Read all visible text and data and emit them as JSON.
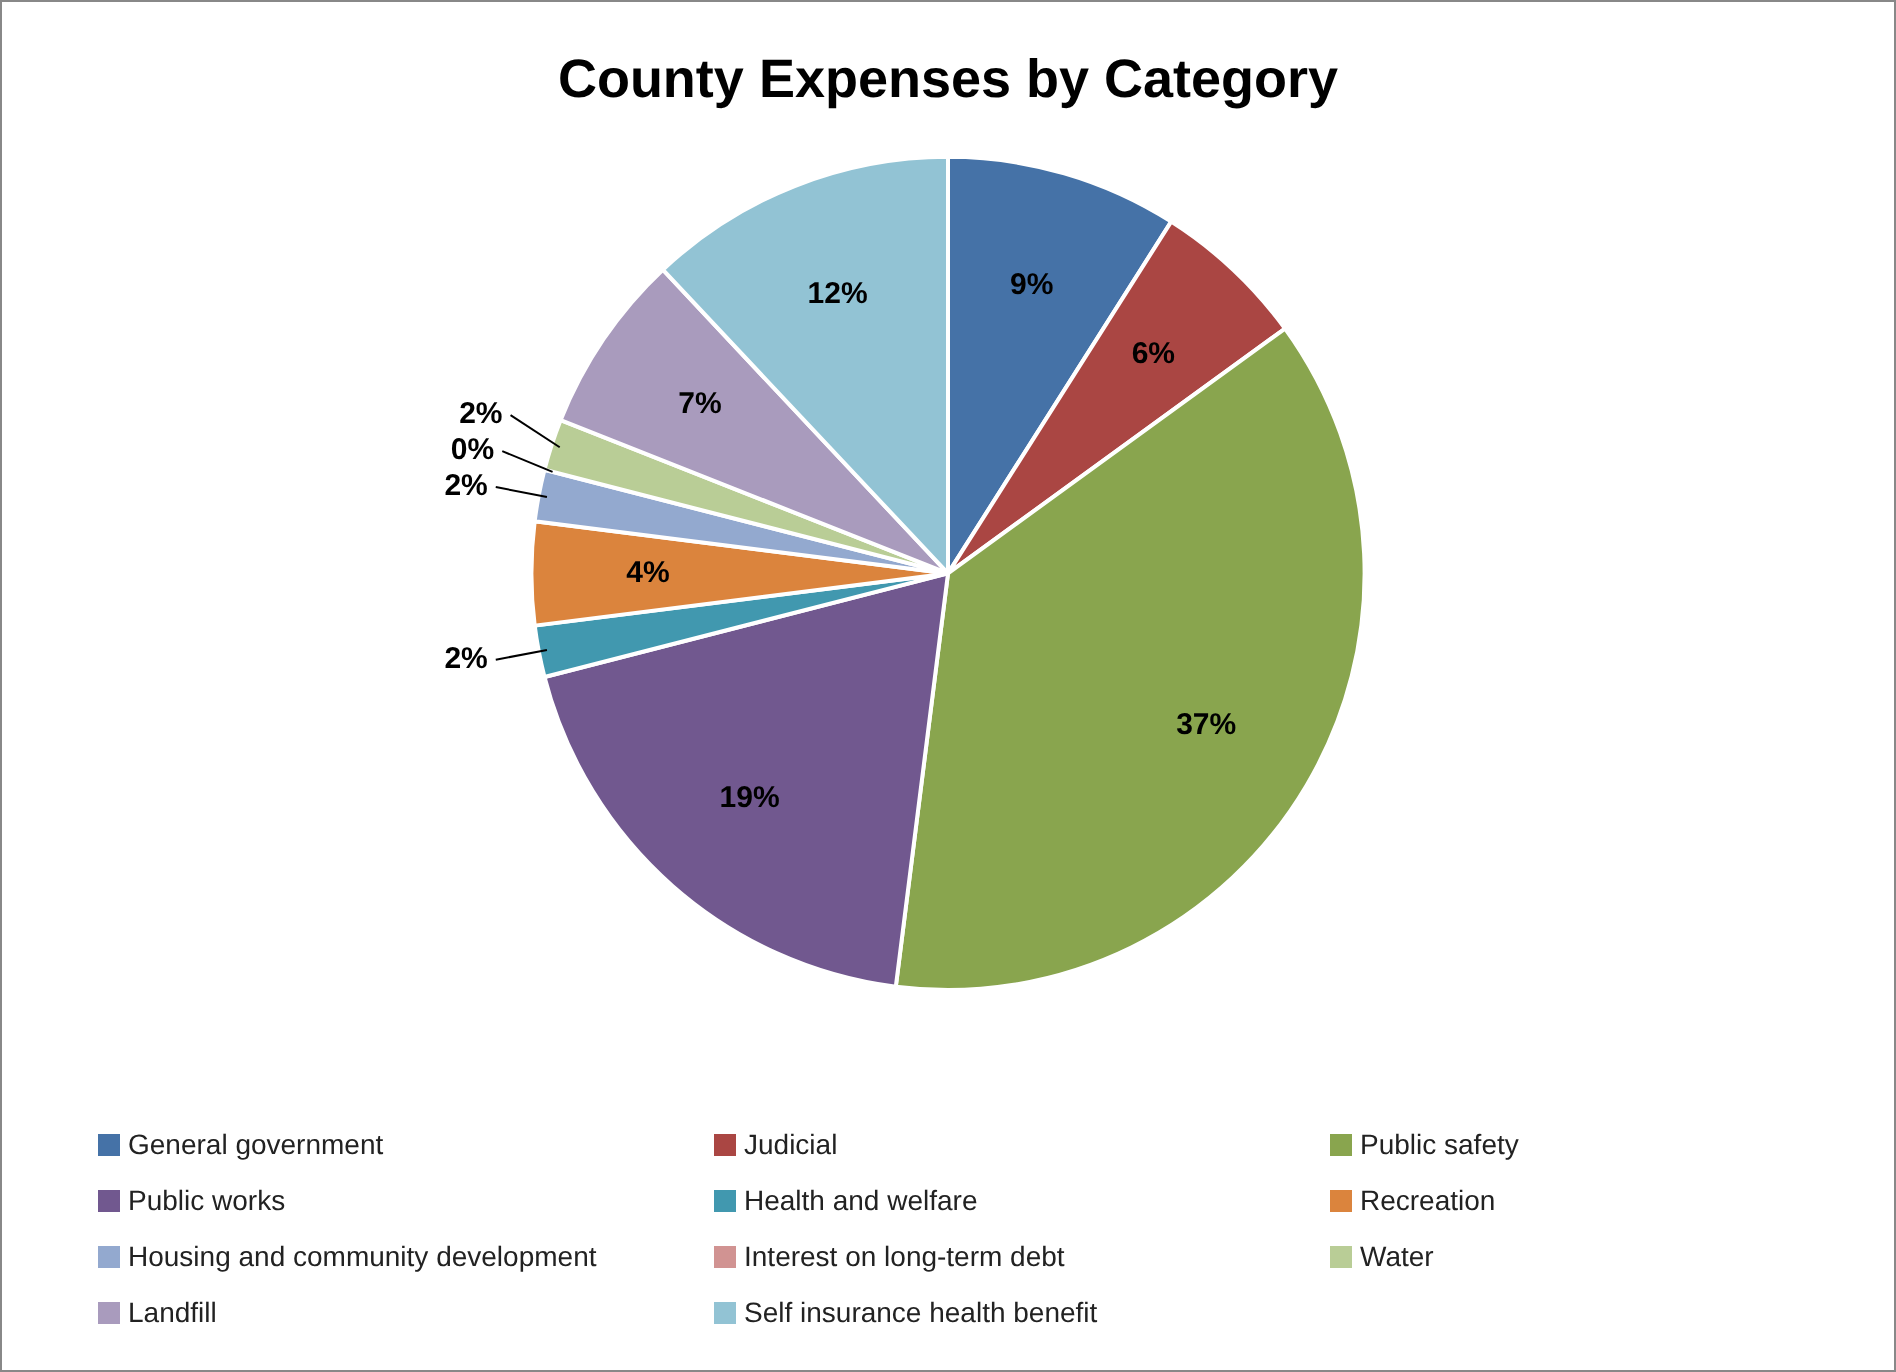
{
  "chart_data": {
    "type": "pie",
    "title": "County Expenses by Category",
    "categories": [
      "General government",
      "Judicial",
      "Public safety",
      "Public works",
      "Health and welfare",
      "Recreation",
      "Housing and community development",
      "Interest on long-term debt",
      "Water",
      "Landfill",
      "Self insurance health benefit"
    ],
    "values": [
      9,
      6,
      37,
      19,
      2,
      4,
      2,
      0,
      2,
      7,
      12
    ],
    "value_labels": [
      "9%",
      "6%",
      "37%",
      "19%",
      "2%",
      "4%",
      "2%",
      "0%",
      "2%",
      "7%",
      "12%"
    ],
    "colors": [
      "#4572a7",
      "#aa4643",
      "#89a54e",
      "#71588f",
      "#4198af",
      "#db843d",
      "#93a9cf",
      "#d19392",
      "#b9cd96",
      "#a99bbd",
      "#92c3d4"
    ],
    "legend": "bottom"
  }
}
